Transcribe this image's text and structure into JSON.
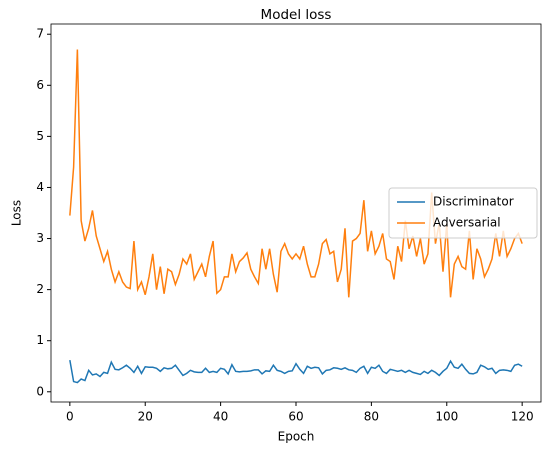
{
  "chart_data": {
    "type": "line",
    "title": "Model loss",
    "x_label": "Epoch",
    "y_label": "Loss",
    "x": [
      0,
      1,
      2,
      3,
      4,
      5,
      6,
      7,
      8,
      9,
      10,
      11,
      12,
      13,
      14,
      15,
      16,
      17,
      18,
      19,
      20,
      21,
      22,
      23,
      24,
      25,
      26,
      27,
      28,
      29,
      30,
      31,
      32,
      33,
      34,
      35,
      36,
      37,
      38,
      39,
      40,
      41,
      42,
      43,
      44,
      45,
      46,
      47,
      48,
      49,
      50,
      51,
      52,
      53,
      54,
      55,
      56,
      57,
      58,
      59,
      60,
      61,
      62,
      63,
      64,
      65,
      66,
      67,
      68,
      69,
      70,
      71,
      72,
      73,
      74,
      75,
      76,
      77,
      78,
      79,
      80,
      81,
      82,
      83,
      84,
      85,
      86,
      87,
      88,
      89,
      90,
      91,
      92,
      93,
      94,
      95,
      96,
      97,
      98,
      99,
      100,
      101,
      102,
      103,
      104,
      105,
      106,
      107,
      108,
      109,
      110,
      111,
      112,
      113,
      114,
      115,
      116,
      117,
      118,
      119,
      120
    ],
    "series": [
      {
        "name": "Discriminator",
        "color": "#1f77b4",
        "values": [
          0.62,
          0.2,
          0.18,
          0.25,
          0.22,
          0.42,
          0.33,
          0.35,
          0.3,
          0.38,
          0.36,
          0.58,
          0.44,
          0.43,
          0.47,
          0.52,
          0.46,
          0.38,
          0.5,
          0.36,
          0.49,
          0.48,
          0.48,
          0.46,
          0.4,
          0.47,
          0.45,
          0.46,
          0.52,
          0.42,
          0.32,
          0.36,
          0.42,
          0.39,
          0.38,
          0.38,
          0.46,
          0.38,
          0.4,
          0.38,
          0.46,
          0.44,
          0.35,
          0.53,
          0.4,
          0.39,
          0.4,
          0.4,
          0.41,
          0.43,
          0.43,
          0.35,
          0.41,
          0.4,
          0.52,
          0.42,
          0.4,
          0.36,
          0.4,
          0.41,
          0.55,
          0.44,
          0.36,
          0.5,
          0.46,
          0.48,
          0.47,
          0.35,
          0.42,
          0.43,
          0.47,
          0.46,
          0.44,
          0.47,
          0.43,
          0.42,
          0.38,
          0.46,
          0.5,
          0.36,
          0.48,
          0.46,
          0.52,
          0.4,
          0.36,
          0.44,
          0.42,
          0.4,
          0.42,
          0.38,
          0.42,
          0.38,
          0.36,
          0.34,
          0.4,
          0.36,
          0.42,
          0.38,
          0.32,
          0.4,
          0.46,
          0.6,
          0.48,
          0.46,
          0.54,
          0.44,
          0.36,
          0.35,
          0.38,
          0.52,
          0.49,
          0.44,
          0.46,
          0.36,
          0.42,
          0.43,
          0.42,
          0.4,
          0.52,
          0.54,
          0.5
        ]
      },
      {
        "name": "Adversarial",
        "color": "#ff7f0e",
        "values": [
          3.45,
          4.4,
          6.7,
          3.35,
          2.95,
          3.2,
          3.55,
          3.05,
          2.8,
          2.55,
          2.75,
          2.4,
          2.15,
          2.35,
          2.15,
          2.05,
          2.02,
          2.95,
          2.0,
          2.15,
          1.9,
          2.25,
          2.7,
          2.0,
          2.45,
          1.92,
          2.4,
          2.35,
          2.1,
          2.3,
          2.6,
          2.5,
          2.7,
          2.2,
          2.35,
          2.5,
          2.25,
          2.65,
          2.95,
          1.93,
          2.0,
          2.25,
          2.25,
          2.7,
          2.35,
          2.55,
          2.62,
          2.72,
          2.4,
          2.25,
          2.12,
          2.8,
          2.4,
          2.8,
          2.3,
          1.95,
          2.75,
          2.9,
          2.7,
          2.6,
          2.7,
          2.6,
          2.85,
          2.5,
          2.25,
          2.25,
          2.5,
          2.9,
          2.98,
          2.7,
          2.75,
          2.15,
          2.4,
          3.2,
          1.85,
          2.95,
          3.0,
          3.1,
          3.75,
          2.75,
          3.15,
          2.7,
          2.85,
          3.1,
          2.6,
          2.55,
          2.2,
          2.85,
          2.55,
          3.35,
          2.8,
          3.05,
          2.65,
          3.0,
          2.5,
          2.7,
          3.9,
          2.9,
          3.3,
          2.35,
          3.3,
          1.85,
          2.5,
          2.65,
          2.45,
          2.4,
          3.15,
          2.2,
          2.8,
          2.6,
          2.25,
          2.4,
          2.6,
          3.1,
          2.65,
          3.15,
          2.65,
          2.8,
          3.0,
          3.1,
          2.9
        ]
      }
    ],
    "xlim": [
      -5,
      125
    ],
    "xticks": [
      0,
      20,
      40,
      60,
      80,
      100,
      120
    ],
    "ylim": [
      -0.2,
      7.2
    ],
    "yticks": [
      0,
      1,
      2,
      3,
      4,
      5,
      6,
      7
    ],
    "grid": false,
    "legend": "center right"
  }
}
